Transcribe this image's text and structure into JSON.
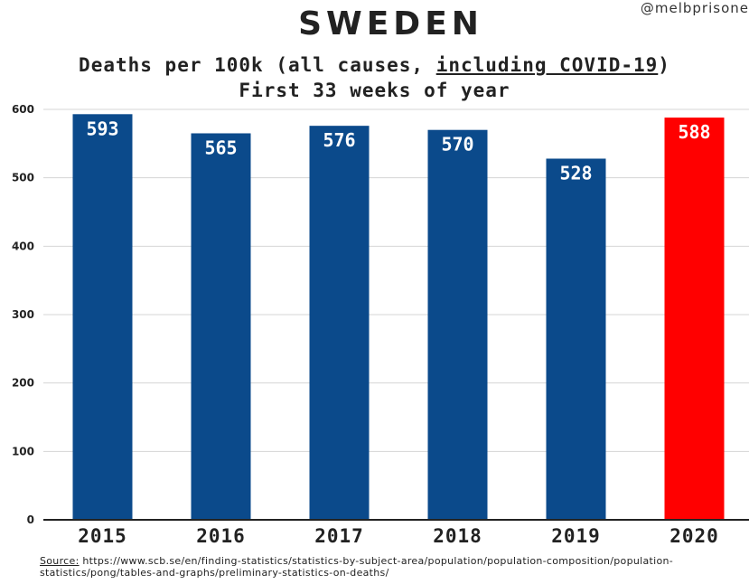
{
  "handle": "@melbprisone",
  "title": "SWEDEN",
  "subtitle": {
    "part1": "Deaths per 100k (all causes, ",
    "underlined": "including COVID-19",
    "part2": ")",
    "line2": "First 33 weeks of year"
  },
  "source": {
    "label": "Source:",
    "text": " https://www.scb.se/en/finding-statistics/statistics-by-subject-area/population/population-composition/population-statistics/pong/tables-and-graphs/preliminary-statistics-on-deaths/"
  },
  "colors": {
    "bar": "#0b4a8b",
    "highlight": "#ff0000",
    "grid": "#d4d4d4",
    "axis": "#222222",
    "label": "#ffffff"
  },
  "chart_data": {
    "type": "bar",
    "categories": [
      "2015",
      "2016",
      "2017",
      "2018",
      "2019",
      "2020"
    ],
    "values": [
      593,
      565,
      576,
      570,
      528,
      588
    ],
    "data_labels": [
      "593",
      "565",
      "576",
      "570",
      "528",
      "588"
    ],
    "highlight_category": "2020",
    "ylim": [
      0,
      600
    ],
    "yticks": [
      0,
      100,
      200,
      300,
      400,
      500,
      600
    ],
    "grid": true,
    "legend": "none"
  }
}
